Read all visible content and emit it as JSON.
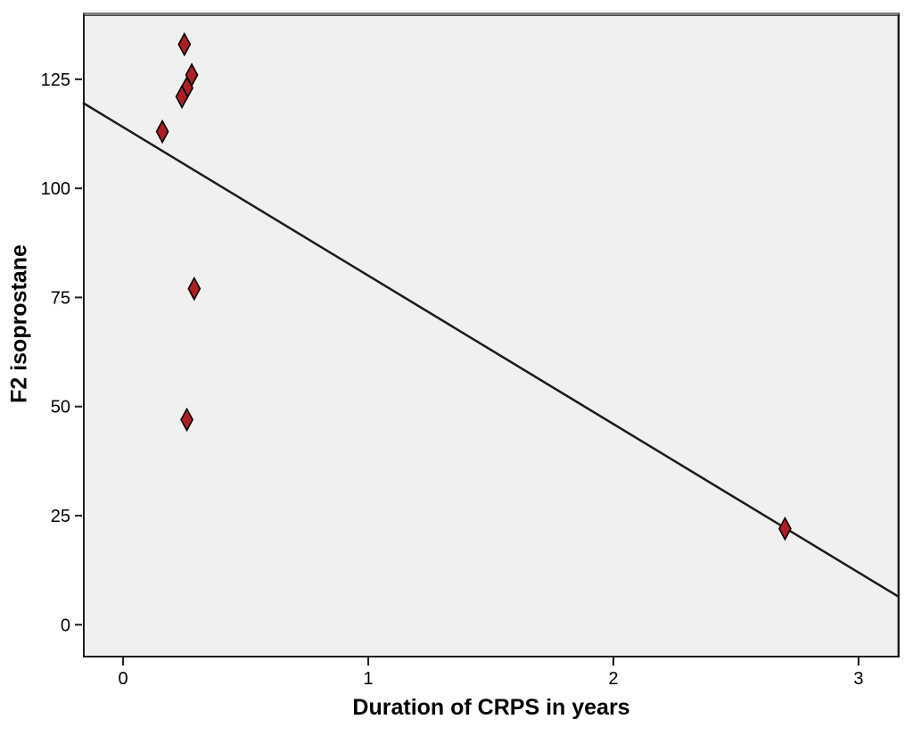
{
  "chart_data": {
    "type": "scatter",
    "title": "",
    "xlabel": "Duration of CRPS in years",
    "ylabel": "F2 isoprostane",
    "xlim": [
      -0.164,
      3.164
    ],
    "ylim": [
      -7.3,
      140.3
    ],
    "xticks": [
      0,
      1,
      2,
      3
    ],
    "yticks": [
      0,
      25,
      50,
      75,
      100,
      125
    ],
    "grid": false,
    "legend": false,
    "points": [
      {
        "x": 0.25,
        "y": 133
      },
      {
        "x": 0.28,
        "y": 126
      },
      {
        "x": 0.26,
        "y": 123
      },
      {
        "x": 0.24,
        "y": 121
      },
      {
        "x": 0.16,
        "y": 113
      },
      {
        "x": 0.29,
        "y": 77
      },
      {
        "x": 0.26,
        "y": 47
      },
      {
        "x": 2.7,
        "y": 22
      }
    ],
    "fit_line": {
      "slope": -34,
      "intercept": 114,
      "x1": -0.164,
      "y1": 119.6,
      "x2": 3.164,
      "y2": 6.4
    },
    "marker": {
      "shape": "diamond",
      "fill": "#ad1f24",
      "stroke": "#000000",
      "width": 13,
      "height": 24
    },
    "colors": {
      "page_bg": "#ffffff",
      "plot_bg": "#f0f0ef",
      "frame": "#1c1c1c",
      "frame_top": "#7e7e7e",
      "axis": "#1c1c1c",
      "line": "#1a1a1a",
      "text": "#000000"
    }
  }
}
